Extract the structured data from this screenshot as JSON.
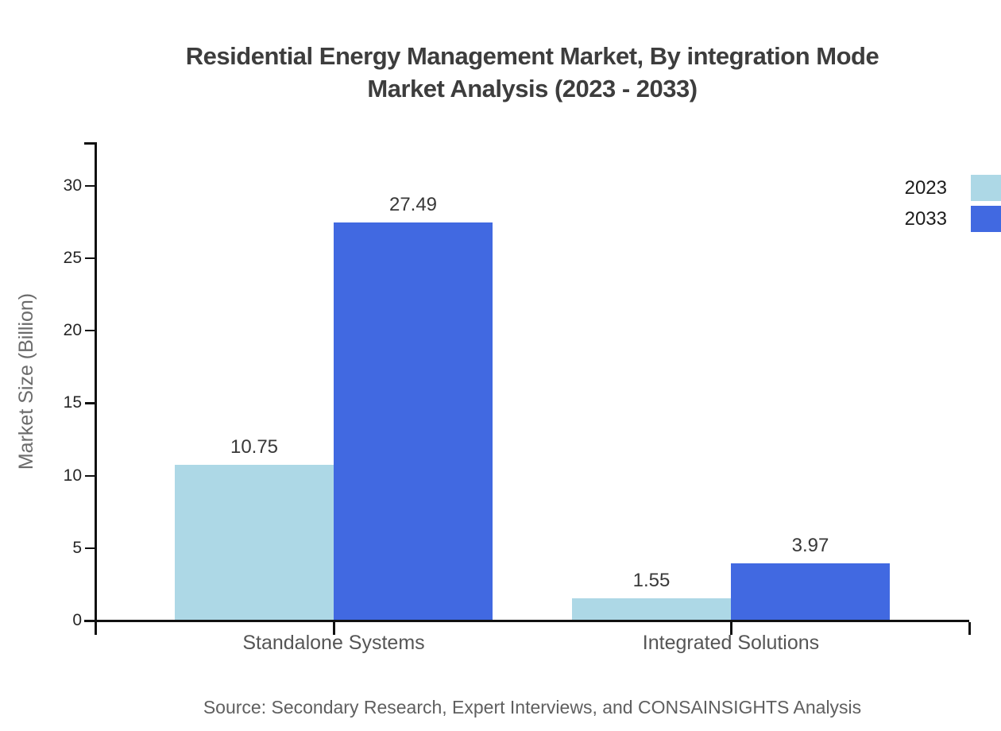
{
  "chart_data": {
    "type": "bar",
    "title_line1": "Residential Energy Management Market, By integration Mode",
    "title_line2": "Market Analysis (2023 - 2033)",
    "ylabel": "Market Size (Billion)",
    "xlabel": "",
    "categories": [
      "Standalone Systems",
      "Integrated Solutions"
    ],
    "series": [
      {
        "name": "2023",
        "color": "#ADD8E6",
        "values": [
          10.75,
          1.55
        ]
      },
      {
        "name": "2033",
        "color": "#4169E1",
        "values": [
          27.49,
          3.97
        ]
      }
    ],
    "value_labels": [
      [
        "10.75",
        "1.55"
      ],
      [
        "27.49",
        "3.97"
      ]
    ],
    "ylim": [
      0,
      33
    ],
    "yticks": [
      0,
      5,
      10,
      15,
      20,
      25,
      30
    ],
    "grid": false,
    "legend_position": "top-right",
    "axis_color": "#111111",
    "background_color": "#ffffff"
  },
  "source_note": "Source: Secondary Research, Expert Interviews, and CONSAINSIGHTS Analysis"
}
